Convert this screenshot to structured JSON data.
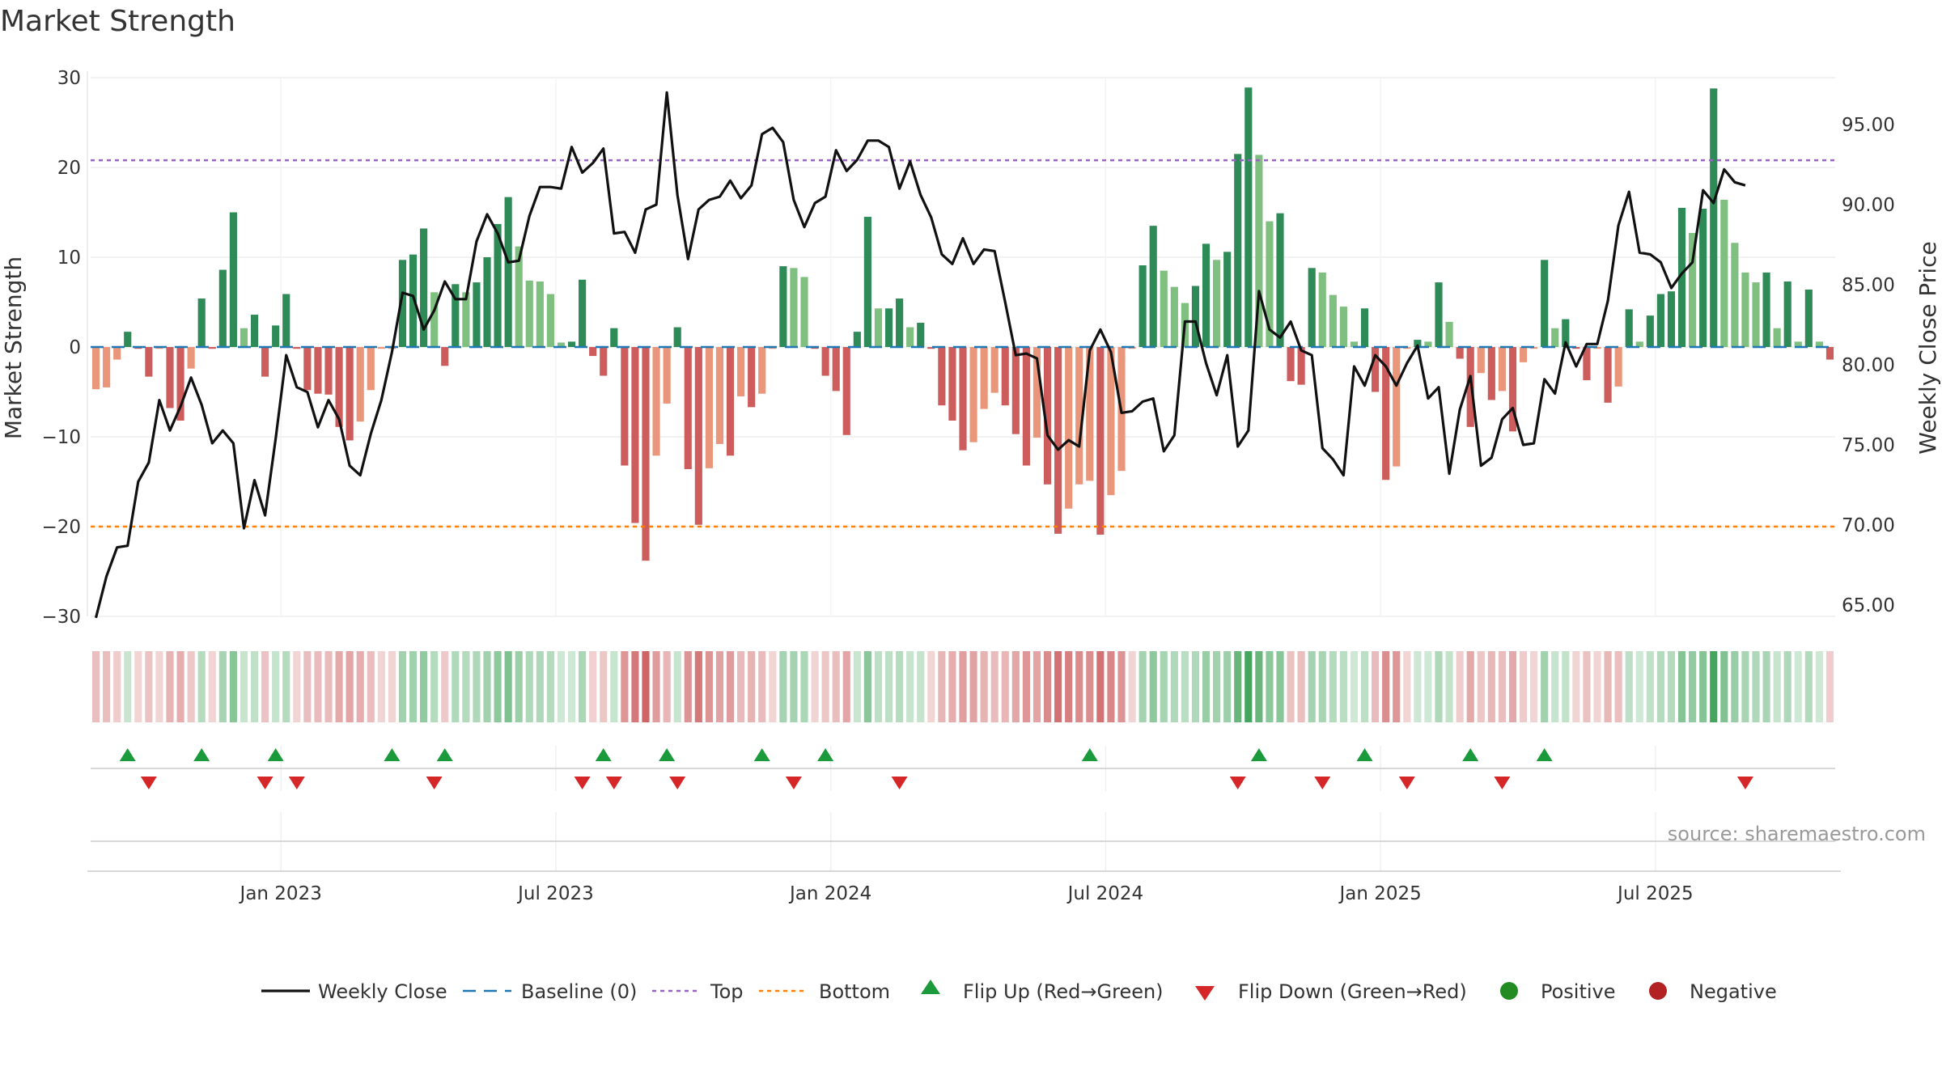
{
  "chart_data": {
    "type": "bar",
    "title": "Market Strength",
    "ylabel": "Market Strength",
    "y2label": "Weekly Close Price",
    "ylim": [
      -30,
      30
    ],
    "y2lim": [
      65,
      97.5
    ],
    "y_ticks": [
      30,
      20,
      10,
      0,
      -10,
      -20,
      -30
    ],
    "y_tick_labels": [
      "30",
      "20",
      "10",
      "0",
      "−10",
      "−20",
      "−30"
    ],
    "y2_ticks": [
      95,
      90,
      85,
      80,
      75,
      70,
      65
    ],
    "y2_tick_labels": [
      "95.00",
      "90.00",
      "85.00",
      "80.00",
      "75.00",
      "70.00",
      "65.00"
    ],
    "x_ticks": [
      {
        "week": 18,
        "label": "Jan 2023"
      },
      {
        "week": 44,
        "label": "Jul 2023"
      },
      {
        "week": 70,
        "label": "Jan 2024"
      },
      {
        "week": 96,
        "label": "Jul 2024"
      },
      {
        "week": 122,
        "label": "Jan 2025"
      },
      {
        "week": 148,
        "label": "Jul 2025"
      }
    ],
    "top_level": 20.8,
    "bottom_level": -20,
    "baseline": 0,
    "strength": [
      -4.7,
      -4.5,
      -1.4,
      1.7,
      -0.2,
      -3.3,
      -0.2,
      -6.8,
      -8.2,
      -2.4,
      5.4,
      -0.2,
      8.6,
      15,
      2.1,
      3.6,
      -3.3,
      2.4,
      5.9,
      -0.2,
      -4.8,
      -5.2,
      -5.3,
      -8.9,
      -10.4,
      -8.3,
      -4.8,
      -0.2,
      -0.2,
      9.7,
      10.3,
      13.2,
      6.1,
      -2.1,
      7,
      6.1,
      7.2,
      10,
      13.7,
      16.7,
      11.2,
      7.4,
      7.3,
      5.9,
      0.5,
      0.6,
      7.5,
      -1,
      -3.2,
      2.1,
      -13.2,
      -19.6,
      -23.8,
      -12.1,
      -6.3,
      2.2,
      -13.6,
      -19.8,
      -13.5,
      -10.8,
      -12.1,
      -5.5,
      -6.7,
      -5.2,
      -0.2,
      9,
      8.8,
      7.8,
      -0.2,
      -3.2,
      -4.9,
      -9.8,
      1.7,
      14.5,
      4.3,
      4.3,
      5.4,
      2.2,
      2.7,
      -0.2,
      -6.5,
      -8.2,
      -11.5,
      -10.6,
      -6.9,
      -5.1,
      -6.5,
      -9.7,
      -13.2,
      -10.1,
      -15.3,
      -20.8,
      -18,
      -15.3,
      -14.9,
      -20.9,
      -16.5,
      -13.8,
      -0.2,
      9.1,
      13.5,
      8.5,
      6.7,
      4.9,
      6.8,
      11.5,
      9.7,
      10.6,
      21.5,
      28.9,
      21.4,
      14,
      14.9,
      -3.8,
      -4.2,
      8.8,
      8.3,
      5.8,
      4.5,
      0.6,
      4.3,
      -5,
      -14.8,
      -13.3,
      -0.2,
      0.8,
      0.6,
      7.2,
      2.8,
      -1.3,
      -8.9,
      -2.9,
      -5.9,
      -4.9,
      -9.4,
      -1.7,
      -0.2,
      9.7,
      2.1,
      3.1,
      -0.2,
      -3.7,
      -0.2,
      -6.2,
      -4.4,
      4.2,
      0.6,
      3.5,
      5.9,
      6.2,
      15.5,
      12.7,
      15.4,
      28.8,
      16.4,
      11.6,
      8.3,
      7.2,
      8.3,
      2.1,
      7.3,
      0.6,
      6.4,
      0.6,
      -1.4
    ],
    "weekly_close": [
      64.2,
      66.8,
      68.6,
      68.7,
      72.7,
      73.9,
      77.8,
      75.9,
      77.4,
      79.2,
      77.5,
      75.1,
      75.9,
      75.1,
      69.8,
      72.8,
      70.6,
      75.4,
      80.6,
      78.6,
      78.3,
      76.1,
      77.8,
      76.6,
      73.7,
      73.1,
      75.7,
      77.8,
      80.8,
      84.5,
      84.3,
      82.2,
      83.4,
      85.2,
      84.1,
      84.1,
      87.7,
      89.4,
      88.2,
      86.4,
      86.5,
      89.3,
      91.1,
      91.1,
      91.0,
      93.6,
      92.0,
      92.6,
      93.5,
      88.2,
      88.3,
      87.0,
      89.7,
      90.0,
      97.0,
      90.6,
      86.6,
      89.7,
      90.3,
      90.5,
      91.5,
      90.4,
      91.2,
      94.4,
      94.8,
      93.9,
      90.3,
      88.6,
      90.1,
      90.5,
      93.4,
      92.1,
      92.8,
      94.0,
      94.0,
      93.6,
      91.0,
      92.7,
      90.6,
      89.2,
      86.9,
      86.3,
      87.9,
      86.3,
      87.2,
      87.1,
      83.9,
      80.6,
      80.7,
      80.4,
      75.6,
      74.7,
      75.3,
      74.9,
      80.9,
      82.2,
      80.8,
      77.0,
      77.1,
      77.7,
      77.9,
      74.6,
      75.6,
      82.7,
      82.7,
      80.1,
      78.1,
      80.6,
      74.9,
      75.9,
      84.6,
      82.2,
      81.7,
      82.7,
      80.9,
      80.6,
      74.8,
      74.1,
      73.1,
      79.9,
      78.7,
      80.6,
      79.9,
      78.7,
      80.1,
      81.2,
      77.9,
      78.6,
      73.2,
      77.2,
      79.3,
      73.7,
      74.2,
      76.6,
      77.3,
      75.0,
      75.1,
      79.1,
      78.2,
      81.4,
      79.9,
      81.3,
      81.3,
      84.0,
      88.7,
      90.8,
      87.0,
      86.9,
      86.4,
      84.8,
      85.7,
      86.4,
      90.9,
      90.1,
      92.2,
      91.4,
      91.2
    ],
    "flip_up_weeks": [
      3,
      10,
      17,
      28,
      33,
      48,
      54,
      63,
      69,
      94,
      110,
      120,
      130,
      137
    ],
    "flip_down_weeks": [
      5,
      16,
      19,
      32,
      46,
      49,
      55,
      66,
      76,
      108,
      116,
      124,
      133,
      156
    ],
    "legend": [
      "Weekly Close",
      "Baseline (0)",
      "Top",
      "Bottom",
      "Flip Up (Red→Green)",
      "Flip Down (Green→Red)",
      "Positive",
      "Negative"
    ],
    "source": "source: sharemaestro.com"
  },
  "colors": {
    "strong_green": "#2e8b57",
    "light_green": "#7fbf7f",
    "strong_red": "#cd5c5c",
    "light_red": "#e9967a",
    "line": "#111111",
    "baseline": "#1f77b4",
    "top": "#9467bd",
    "bottom": "#ff7f0e",
    "flip_up": "#1a9a3a",
    "flip_down": "#d62728",
    "positive": "#228b22",
    "negative": "#b22222"
  }
}
